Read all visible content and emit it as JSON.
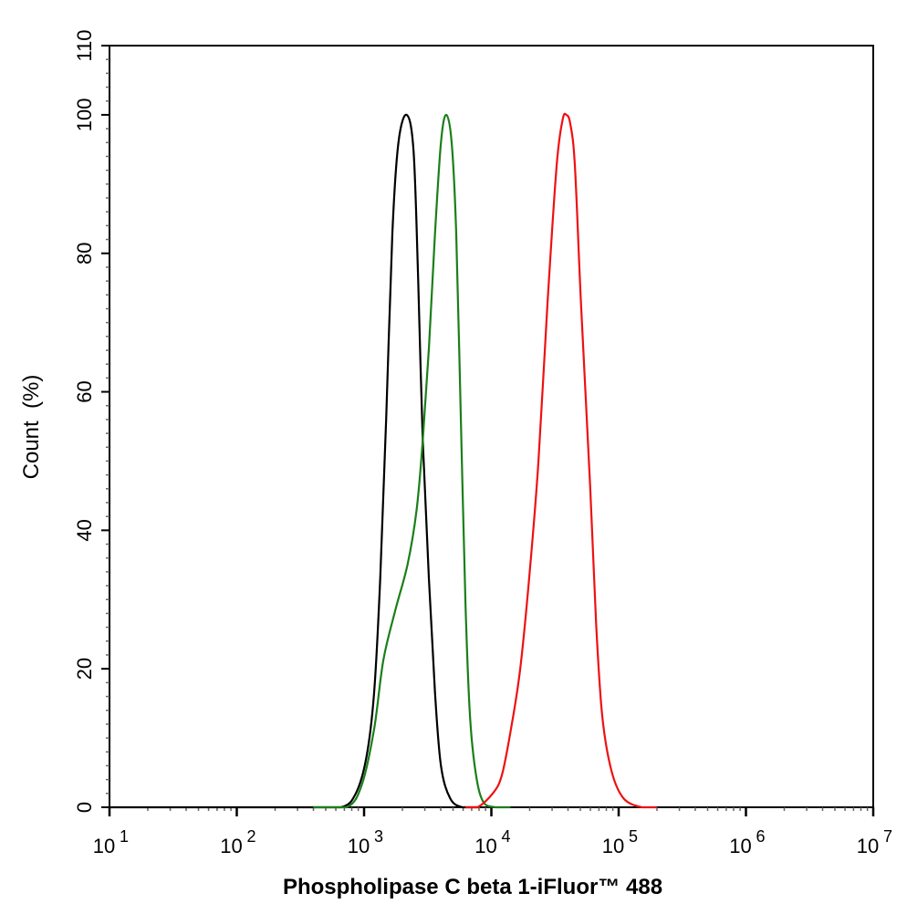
{
  "chart_data": {
    "type": "line",
    "title": "",
    "xlabel": "Phospholipase C beta 1-iFluor™ 488",
    "ylabel": "Count  (%)",
    "xscale": "log10",
    "xlim_log10": [
      1,
      7
    ],
    "ylim": [
      0,
      110
    ],
    "x_ticks": [
      {
        "base": "10",
        "exp": "1"
      },
      {
        "base": "10",
        "exp": "2"
      },
      {
        "base": "10",
        "exp": "3"
      },
      {
        "base": "10",
        "exp": "4"
      },
      {
        "base": "10",
        "exp": "5"
      },
      {
        "base": "10",
        "exp": "6"
      },
      {
        "base": "10",
        "exp": "7"
      }
    ],
    "y_ticks": [
      "0",
      "20",
      "40",
      "60",
      "80",
      "100",
      "110"
    ],
    "y_tick_values": [
      0,
      20,
      40,
      60,
      80,
      100,
      110
    ],
    "grid": false,
    "legend": "none",
    "series": [
      {
        "name": "black",
        "color": "#000000",
        "x_log10": [
          1.0,
          2.5,
          2.816,
          2.935,
          3.019,
          3.079,
          3.127,
          3.174,
          3.222,
          3.27,
          3.335,
          3.389,
          3.425,
          3.461,
          3.509,
          3.557,
          3.604,
          3.676,
          3.772,
          3.9
        ],
        "y": [
          0,
          0,
          0,
          2.0,
          7.3,
          16.6,
          33.1,
          56.3,
          82.8,
          96.0,
          100,
          94.7,
          76.2,
          53.0,
          33.1,
          16.6,
          6.0,
          1.3,
          0,
          0
        ]
      },
      {
        "name": "green",
        "color": "#1a7f1a",
        "x_log10": [
          2.6,
          2.864,
          2.983,
          3.079,
          3.151,
          3.246,
          3.342,
          3.413,
          3.461,
          3.509,
          3.557,
          3.604,
          3.645,
          3.688,
          3.724,
          3.76,
          3.796,
          3.832,
          3.88,
          3.939,
          4.035,
          4.15
        ],
        "y": [
          0,
          0,
          3.3,
          11.3,
          21.2,
          28.5,
          35.1,
          43.0,
          53.0,
          66.2,
          82.8,
          96.0,
          100,
          96.0,
          82.8,
          56.3,
          29.8,
          13.2,
          4.6,
          0.7,
          0,
          0
        ]
      },
      {
        "name": "red",
        "color": "#ee1111",
        "x_log10": [
          3.796,
          3.891,
          4.011,
          4.082,
          4.154,
          4.226,
          4.297,
          4.369,
          4.441,
          4.513,
          4.56,
          4.589,
          4.62,
          4.656,
          4.704,
          4.776,
          4.823,
          4.871,
          4.943,
          5.038,
          5.181,
          5.3
        ],
        "y": [
          0,
          0,
          2.0,
          4.6,
          11.3,
          19.9,
          33.1,
          49.7,
          72.8,
          92.7,
          99.3,
          100,
          98.7,
          92.7,
          72.8,
          46.4,
          26.5,
          13.2,
          5.3,
          1.3,
          0,
          0
        ]
      }
    ]
  }
}
